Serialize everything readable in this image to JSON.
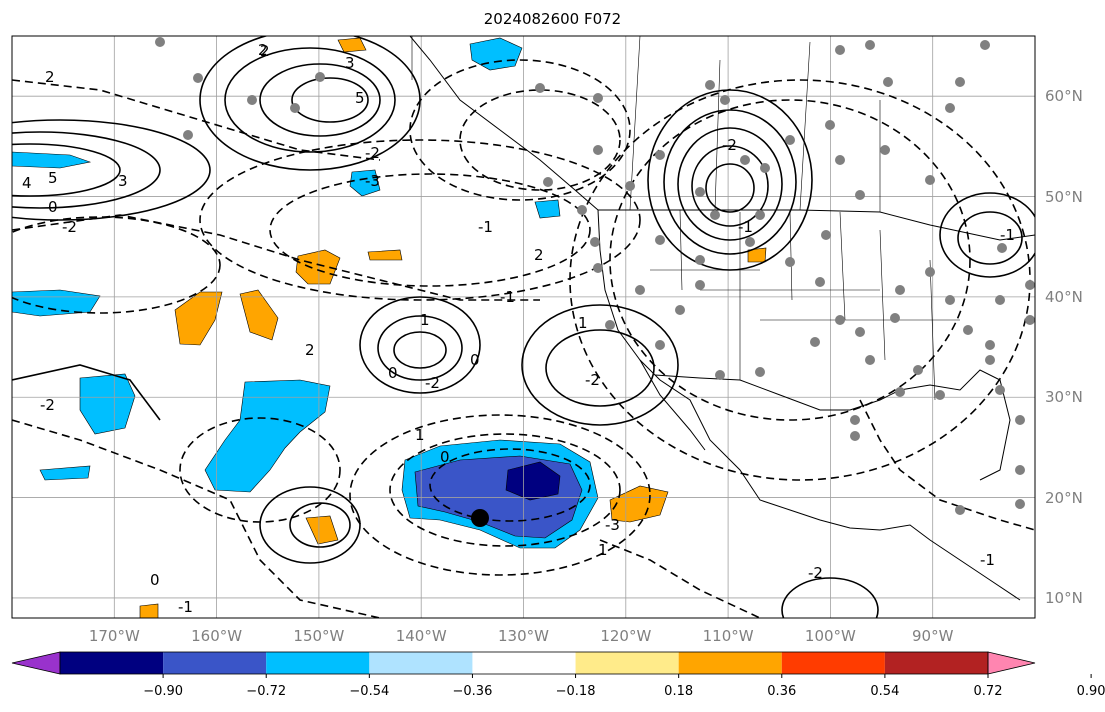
{
  "figure": {
    "title": "2024082600 F072"
  },
  "axes": {
    "lat_labels": [
      "60°N",
      "50°N",
      "40°N",
      "30°N",
      "20°N",
      "10°N"
    ],
    "lon_labels": [
      "170°W",
      "160°W",
      "150°W",
      "140°W",
      "130°W",
      "120°W",
      "110°W",
      "100°W",
      "90°W"
    ],
    "lat_values": [
      60,
      50,
      40,
      30,
      20,
      10
    ],
    "lon_values": [
      -170,
      -160,
      -150,
      -140,
      -130,
      -120,
      -110,
      -100,
      -90
    ],
    "lon_range": [
      -180,
      -80
    ],
    "lat_range": [
      8,
      66
    ],
    "grid": true,
    "label_color": "#808080"
  },
  "colorbar": {
    "tick_labels": [
      "−0.90",
      "−0.72",
      "−0.54",
      "−0.36",
      "−0.18",
      "0.18",
      "0.36",
      "0.54",
      "0.72",
      "0.90"
    ],
    "colors": [
      "#9932cc",
      "#000080",
      "#3a55c8",
      "#00bfff",
      "#afe3ff",
      "#ffffff",
      "#ffeb8a",
      "#ffa500",
      "#ff3c00",
      "#b22222",
      "#ff85b0"
    ]
  },
  "contour_labels": [
    "2",
    "3",
    "5",
    "4",
    "5",
    "3",
    "2",
    "0",
    "-2",
    "-2",
    "-3",
    "2",
    "2",
    "1",
    "0",
    "-2",
    "-1",
    "2",
    "1",
    "-2",
    "0",
    "1",
    "0",
    "-1",
    "-3",
    "1",
    "0",
    "-1",
    "-2",
    "-1",
    "-2",
    "-2",
    "-1",
    "-1"
  ],
  "marker": {
    "lon": -134.5,
    "lat": 17.8,
    "color": "#000000"
  }
}
